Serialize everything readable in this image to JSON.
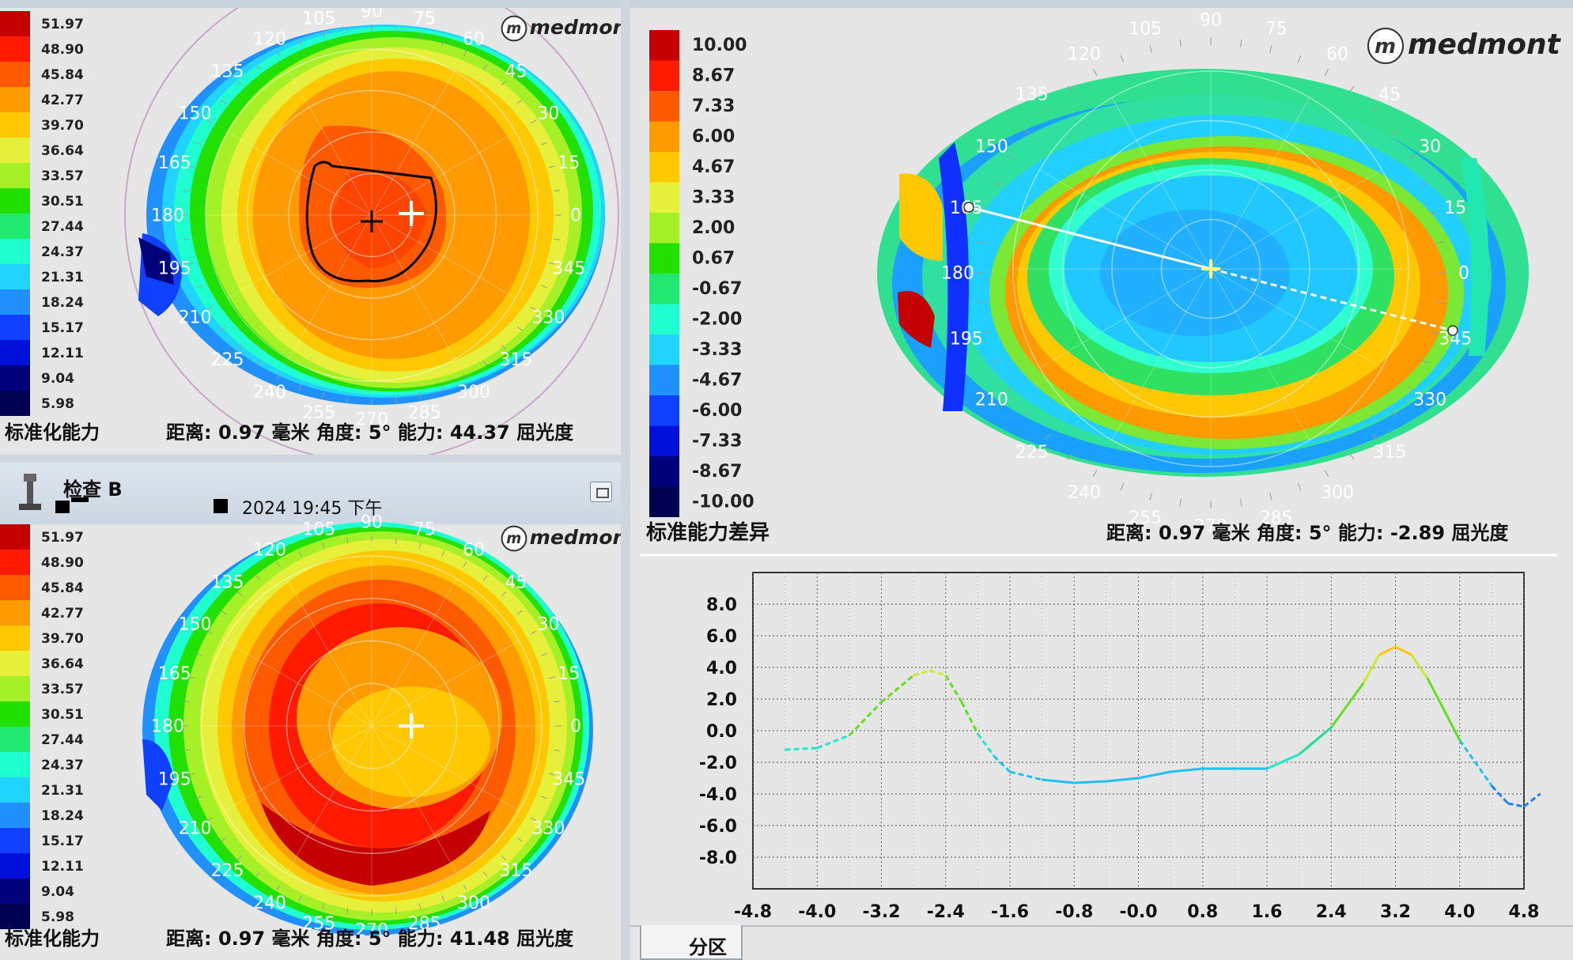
{
  "brand": "medmont",
  "scaleA": [
    "51.97",
    "48.90",
    "45.84",
    "42.77",
    "39.70",
    "36.64",
    "33.57",
    "30.51",
    "27.44",
    "24.37",
    "21.31",
    "18.24",
    "15.17",
    "12.11",
    "9.04",
    "5.98"
  ],
  "scaleColors": [
    "#c40000",
    "#ff1a00",
    "#ff5a00",
    "#ff9a00",
    "#ffc800",
    "#e6f03a",
    "#a6f028",
    "#22e000",
    "#20e870",
    "#20ffd0",
    "#20d4ff",
    "#2090ff",
    "#1040ff",
    "#0010d8",
    "#00007a",
    "#000050"
  ],
  "paneA": {
    "footer_label": "标准化能力",
    "footer_readout": "距离: 0.97 毫米  角度: 5°  能力: 44.37 屈光度"
  },
  "paneB": {
    "exam_title": "检查 B",
    "exam_date": "2024 19:45 下午",
    "footer_label": "标准化能力",
    "footer_readout": "距离: 0.97 毫米  角度: 5°  能力: 41.48 屈光度"
  },
  "paneC": {
    "scale": [
      "10.00",
      "8.67",
      "7.33",
      "6.00",
      "4.67",
      "3.33",
      "2.00",
      "0.67",
      "-0.67",
      "-2.00",
      "-3.33",
      "-4.67",
      "-6.00",
      "-7.33",
      "-8.67",
      "-10.00"
    ],
    "footer_label": "标准能力差异",
    "footer_readout": "距离: 0.97 毫米  角度: 5°  能力: -2.89 屈光度",
    "tab_label": "分区"
  },
  "angle_labels": [
    "90",
    "105",
    "120",
    "135",
    "150",
    "165",
    "180",
    "195",
    "210",
    "225",
    "240",
    "255",
    "270",
    "285",
    "300",
    "315",
    "330",
    "345",
    "0",
    "15",
    "30",
    "45",
    "60",
    "75"
  ],
  "chart_data": {
    "type": "line",
    "x_ticks": [
      "-4.8",
      "-4.0",
      "-3.2",
      "-2.4",
      "-1.6",
      "-0.8",
      "-0.0",
      "0.8",
      "1.6",
      "2.4",
      "3.2",
      "4.0",
      "4.8"
    ],
    "y_ticks": [
      "8.0",
      "6.0",
      "4.0",
      "2.0",
      "0.0",
      "-2.0",
      "-4.0",
      "-6.0",
      "-8.0"
    ],
    "xlim": [
      -4.8,
      4.8
    ],
    "ylim": [
      -10,
      10
    ],
    "x": [
      -4.4,
      -4.0,
      -3.6,
      -3.2,
      -2.8,
      -2.6,
      -2.4,
      -2.2,
      -2.0,
      -1.8,
      -1.6,
      -1.2,
      -0.8,
      -0.4,
      0.0,
      0.4,
      0.8,
      1.2,
      1.6,
      2.0,
      2.4,
      2.8,
      3.0,
      3.2,
      3.4,
      3.6,
      4.0,
      4.4,
      4.6,
      4.8,
      5.0
    ],
    "y": [
      -1.2,
      -1.1,
      -0.3,
      1.8,
      3.5,
      3.8,
      3.5,
      1.8,
      -0.2,
      -1.6,
      -2.6,
      -3.1,
      -3.3,
      -3.2,
      -3.0,
      -2.6,
      -2.4,
      -2.4,
      -2.4,
      -1.5,
      0.2,
      3.0,
      4.8,
      5.3,
      4.8,
      3.3,
      -0.6,
      -3.5,
      -4.6,
      -4.8,
      -4.0
    ]
  }
}
